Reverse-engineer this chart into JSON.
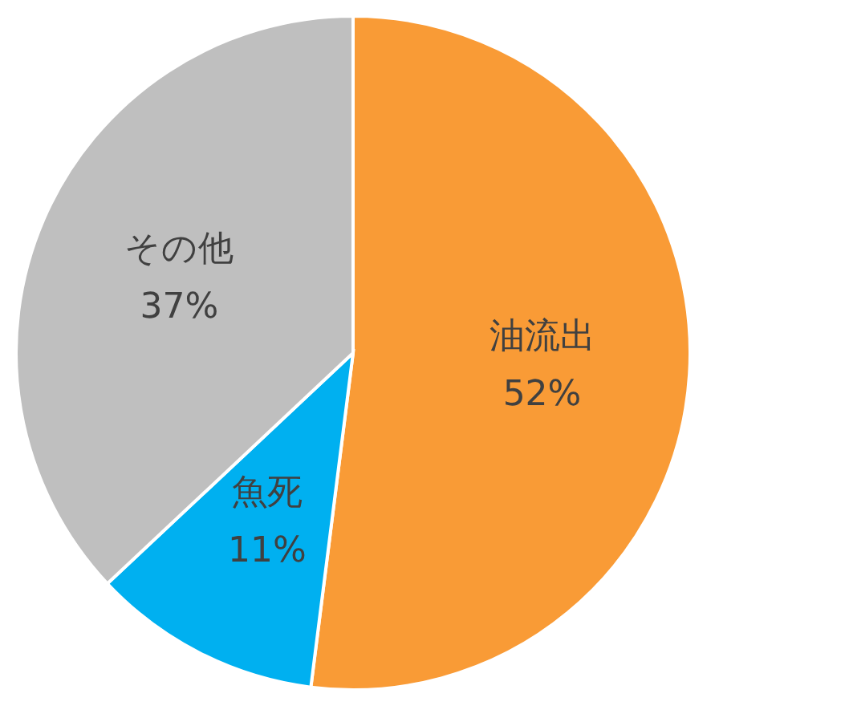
{
  "chart_data": {
    "type": "pie",
    "categories": [
      "油流出",
      "魚死",
      "その他"
    ],
    "values": [
      52,
      11,
      37
    ],
    "colors": [
      "#f99b36",
      "#00b0f0",
      "#bfbfbf"
    ],
    "value_labels": [
      "52%",
      "11%",
      "37%"
    ],
    "legend": false
  }
}
